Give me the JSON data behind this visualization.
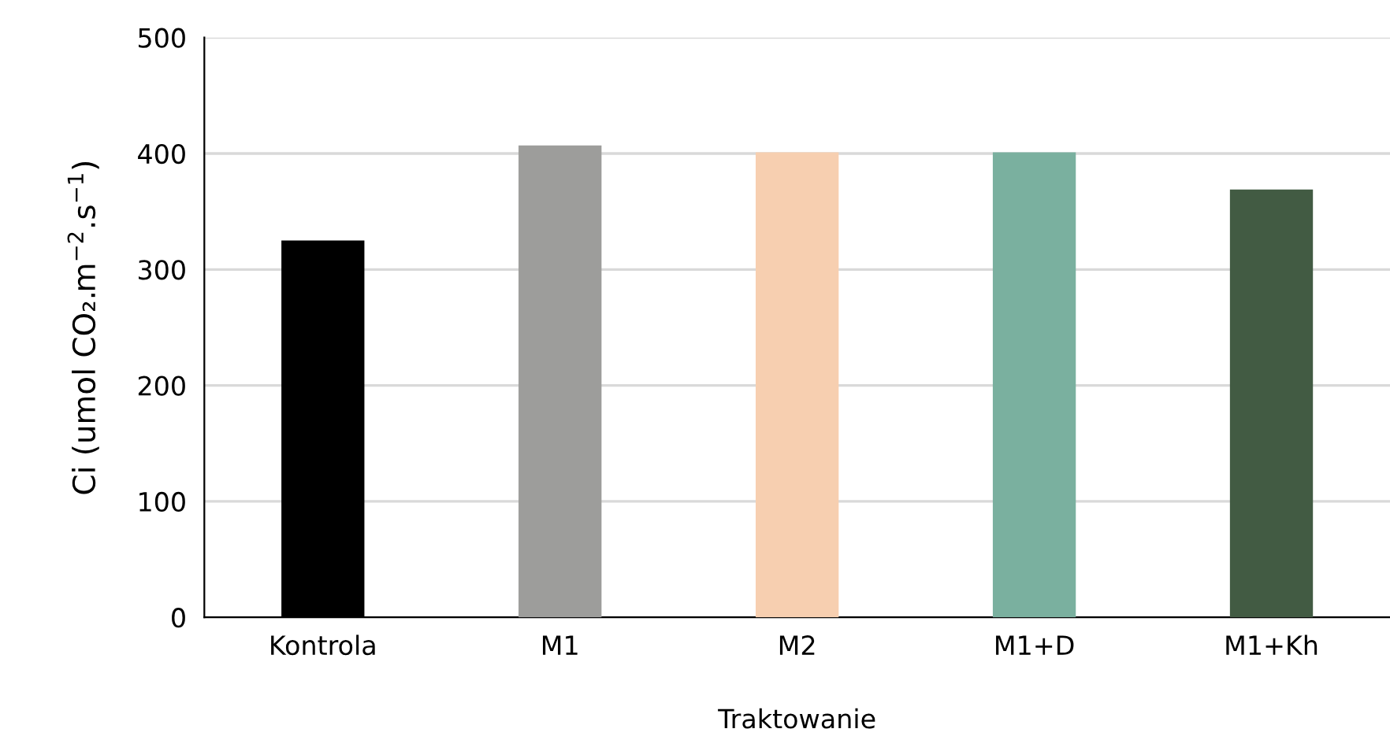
{
  "chart_data": {
    "type": "bar",
    "categories": [
      "Kontrola",
      "M1",
      "M2",
      "M1+D",
      "M1+Kh"
    ],
    "values": [
      325,
      407,
      401,
      401,
      369
    ],
    "colors": [
      "#000000",
      "#9d9d9b",
      "#f7cfb0",
      "#7ab09f",
      "#425b43"
    ],
    "xlabel": "Traktowanie",
    "ylabel": "Ci (umol CO₂.m$^{−2}$.s$^{−1}$)",
    "ylim": [
      0,
      500
    ],
    "yticks": [
      0,
      100,
      200,
      300,
      400,
      500
    ],
    "grid": "y"
  }
}
